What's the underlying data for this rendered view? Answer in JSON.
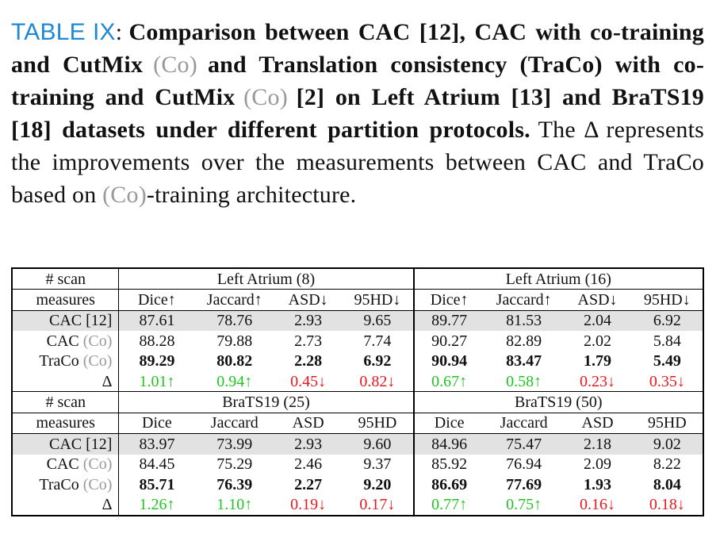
{
  "caption": {
    "label": "TABLE IX",
    "bold_a": "Comparison between CAC [12], CAC with co-training and CutMix",
    "co1": "(Co)",
    "bold_b": "and Translation consistency (TraCo) with co-training and CutMix",
    "co2": "(Co)",
    "bold_c": "[2] on Left Atrium [13] and BraTS19 [18] datasets under different partition protocols.",
    "normal_a": "The Δ represents the improvements over the measurements between CAC and TraCo based on",
    "co3": "(Co)",
    "normal_b": "-training architecture."
  },
  "table": {
    "scan_label": "# scan",
    "measures_label": "measures",
    "co_tag": "(Co)",
    "delta_label": "Δ",
    "groups": [
      {
        "headers": [
          "Left Atrium (8)",
          "Left Atrium (16)"
        ],
        "measures": [
          "Dice↑",
          "Jaccard↑",
          "ASD↓",
          "95HD↓",
          "Dice↑",
          "Jaccard↑",
          "ASD↓",
          "95HD↓"
        ],
        "rows": [
          {
            "name": "CAC [12]",
            "values": [
              "87.61",
              "78.76",
              "2.93",
              "9.65",
              "89.77",
              "81.53",
              "2.04",
              "6.92"
            ]
          },
          {
            "name": "CAC",
            "values": [
              "88.28",
              "79.88",
              "2.73",
              "7.74",
              "90.27",
              "82.89",
              "2.02",
              "5.84"
            ]
          },
          {
            "name": "TraCo",
            "values": [
              "89.29",
              "80.82",
              "2.28",
              "6.92",
              "90.94",
              "83.47",
              "1.79",
              "5.49"
            ]
          }
        ],
        "delta": [
          "1.01↑",
          "0.94↑",
          "0.45↓",
          "0.82↓",
          "0.67↑",
          "0.58↑",
          "0.23↓",
          "0.35↓"
        ]
      },
      {
        "headers": [
          "BraTS19 (25)",
          "BraTS19 (50)"
        ],
        "measures": [
          "Dice",
          "Jaccard",
          "ASD",
          "95HD",
          "Dice",
          "Jaccard",
          "ASD",
          "95HD"
        ],
        "rows": [
          {
            "name": "CAC [12]",
            "values": [
              "83.97",
              "73.99",
              "2.93",
              "9.60",
              "84.96",
              "75.47",
              "2.18",
              "9.02"
            ]
          },
          {
            "name": "CAC",
            "values": [
              "84.45",
              "75.29",
              "2.46",
              "9.37",
              "85.92",
              "76.94",
              "2.09",
              "8.22"
            ]
          },
          {
            "name": "TraCo",
            "values": [
              "85.71",
              "76.39",
              "2.27",
              "9.20",
              "86.69",
              "77.69",
              "1.93",
              "8.04"
            ]
          }
        ],
        "delta": [
          "1.26↑",
          "1.10↑",
          "0.19↓",
          "0.17↓",
          "0.77↑",
          "0.75↑",
          "0.16↓",
          "0.18↓"
        ]
      }
    ]
  }
}
